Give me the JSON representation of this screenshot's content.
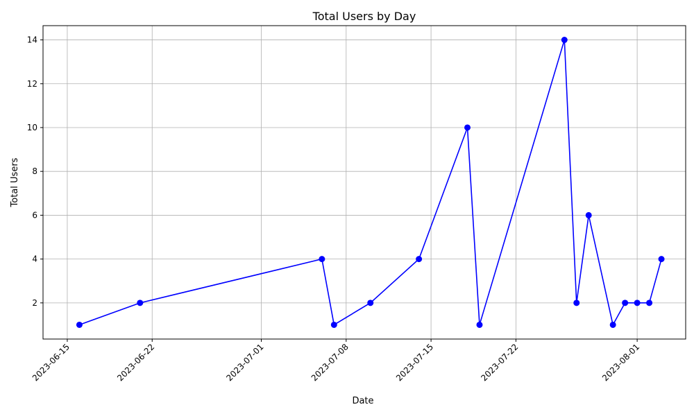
{
  "chart_data": {
    "type": "line",
    "title": "Total Users by Day",
    "xlabel": "Date",
    "ylabel": "Total Users",
    "x_ticks": [
      "2023-06-15",
      "2023-06-22",
      "2023-07-01",
      "2023-07-08",
      "2023-07-15",
      "2023-07-22",
      "2023-08-01"
    ],
    "y_ticks": [
      2,
      4,
      6,
      8,
      10,
      12,
      14
    ],
    "xlim": [
      "2023-06-13",
      "2023-08-05"
    ],
    "ylim": [
      0.35,
      14.65
    ],
    "grid": true,
    "marker": "circle",
    "color": "#0000ff",
    "series": [
      {
        "x": [
          "2023-06-16",
          "2023-06-21",
          "2023-07-06",
          "2023-07-07",
          "2023-07-10",
          "2023-07-14",
          "2023-07-18",
          "2023-07-19",
          "2023-07-26",
          "2023-07-27",
          "2023-07-28",
          "2023-07-30",
          "2023-07-31",
          "2023-08-01",
          "2023-08-02",
          "2023-08-03"
        ],
        "values": [
          1,
          2,
          4,
          1,
          2,
          4,
          10,
          1,
          14,
          2,
          6,
          1,
          2,
          2,
          2,
          4
        ]
      }
    ]
  }
}
